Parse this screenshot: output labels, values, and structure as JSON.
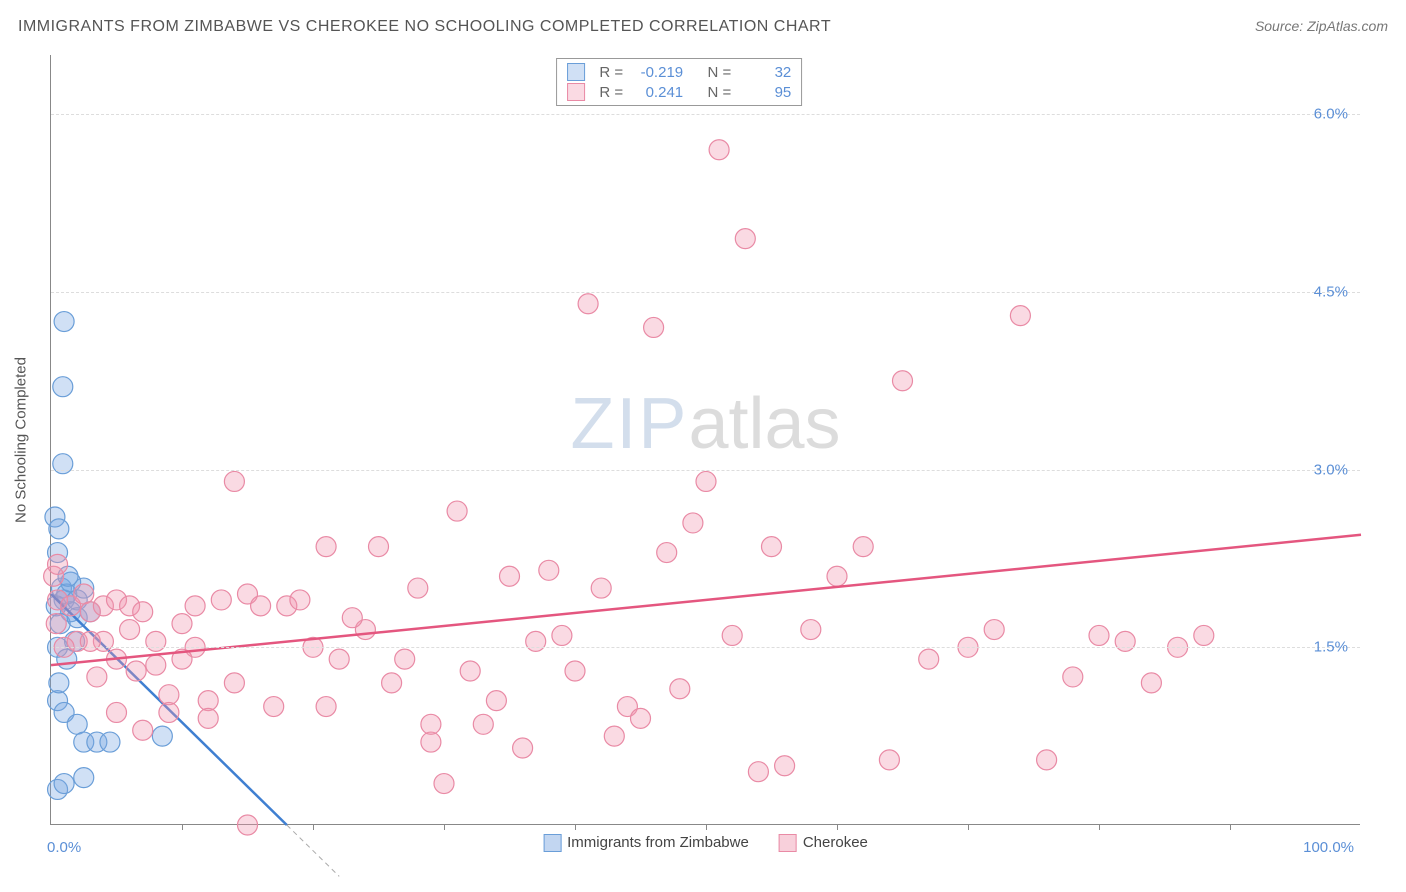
{
  "chart": {
    "type": "scatter",
    "title": "IMMIGRANTS FROM ZIMBABWE VS CHEROKEE NO SCHOOLING COMPLETED CORRELATION CHART",
    "source": "Source: ZipAtlas.com",
    "ylabel": "No Schooling Completed",
    "title_fontsize": 16,
    "label_fontsize": 15,
    "background_color": "#ffffff",
    "grid_color": "#dddddd",
    "axis_color": "#888888",
    "tick_label_color": "#5b8fd6",
    "xaxis": {
      "min_label": "0.0%",
      "max_label": "100.0%",
      "xlim": [
        0,
        100
      ],
      "tick_interval_pct": 10
    },
    "yaxis": {
      "ylim": [
        0,
        6.5
      ],
      "ticks": [
        1.5,
        3.0,
        4.5,
        6.0
      ],
      "tick_labels": [
        "1.5%",
        "3.0%",
        "4.5%",
        "6.0%"
      ]
    },
    "watermark": {
      "text_a": "ZIP",
      "text_b": "atlas",
      "color_a": "rgba(130,160,200,0.35)",
      "color_b": "rgba(140,140,140,0.3)",
      "fontsize": 72
    },
    "marker_radius": 10,
    "marker_stroke_width": 1.2,
    "trendline_width": 2.5,
    "series": [
      {
        "name": "Immigrants from Zimbabwe",
        "fill": "rgba(120,165,225,0.35)",
        "stroke": "#6a9ed8",
        "solid": "#3f7fd1",
        "R_label": "R =",
        "R": "-0.219",
        "N_label": "N =",
        "N": "32",
        "trend": {
          "x1": 0,
          "y1": 1.95,
          "x2": 18,
          "y2": 0.0,
          "dash_extend_x": 22
        },
        "points": [
          [
            0.3,
            2.6
          ],
          [
            0.5,
            2.3
          ],
          [
            0.8,
            2.0
          ],
          [
            0.6,
            2.5
          ],
          [
            1.0,
            1.9
          ],
          [
            0.4,
            1.85
          ],
          [
            1.2,
            1.95
          ],
          [
            1.5,
            1.8
          ],
          [
            1.0,
            4.25
          ],
          [
            0.9,
            3.7
          ],
          [
            0.9,
            3.05
          ],
          [
            2.0,
            1.9
          ],
          [
            2.5,
            2.0
          ],
          [
            1.8,
            1.55
          ],
          [
            0.5,
            1.5
          ],
          [
            1.2,
            1.4
          ],
          [
            0.5,
            1.05
          ],
          [
            1.0,
            0.95
          ],
          [
            2.0,
            0.85
          ],
          [
            2.5,
            0.7
          ],
          [
            3.5,
            0.7
          ],
          [
            0.5,
            0.3
          ],
          [
            1.0,
            0.35
          ],
          [
            2.5,
            0.4
          ],
          [
            4.5,
            0.7
          ],
          [
            8.5,
            0.75
          ],
          [
            0.7,
            1.7
          ],
          [
            1.5,
            2.05
          ],
          [
            2.0,
            1.75
          ],
          [
            3.0,
            1.8
          ],
          [
            1.3,
            2.1
          ],
          [
            0.6,
            1.2
          ]
        ]
      },
      {
        "name": "Cherokee",
        "fill": "rgba(240,150,175,0.35)",
        "stroke": "#e98aa5",
        "solid": "#e4567f",
        "R_label": "R =",
        "R": "0.241",
        "N_label": "N =",
        "N": "95",
        "trend": {
          "x1": 0,
          "y1": 1.35,
          "x2": 100,
          "y2": 2.45
        },
        "points": [
          [
            0.5,
            1.9
          ],
          [
            1.5,
            1.85
          ],
          [
            2.5,
            1.95
          ],
          [
            3.0,
            1.8
          ],
          [
            4.0,
            1.85
          ],
          [
            5.0,
            1.9
          ],
          [
            6.0,
            1.85
          ],
          [
            7.0,
            1.8
          ],
          [
            3.5,
            1.25
          ],
          [
            5.0,
            1.4
          ],
          [
            6.5,
            1.3
          ],
          [
            8.0,
            1.35
          ],
          [
            9.0,
            1.1
          ],
          [
            10,
            1.7
          ],
          [
            11,
            1.5
          ],
          [
            12,
            1.05
          ],
          [
            5.0,
            0.95
          ],
          [
            7.0,
            0.8
          ],
          [
            12,
            0.9
          ],
          [
            14,
            1.2
          ],
          [
            15,
            1.95
          ],
          [
            14,
            2.9
          ],
          [
            17,
            1.0
          ],
          [
            18,
            1.85
          ],
          [
            20,
            1.5
          ],
          [
            21,
            1.0
          ],
          [
            21,
            2.35
          ],
          [
            22,
            1.4
          ],
          [
            24,
            1.65
          ],
          [
            25,
            2.35
          ],
          [
            26,
            1.2
          ],
          [
            27,
            1.4
          ],
          [
            28,
            2.0
          ],
          [
            29,
            0.7
          ],
          [
            29,
            0.85
          ],
          [
            30,
            0.35
          ],
          [
            31,
            2.65
          ],
          [
            32,
            1.3
          ],
          [
            33,
            0.85
          ],
          [
            34,
            1.05
          ],
          [
            35,
            2.1
          ],
          [
            36,
            0.65
          ],
          [
            37,
            1.55
          ],
          [
            38,
            2.15
          ],
          [
            40,
            1.3
          ],
          [
            41,
            4.4
          ],
          [
            42,
            2.0
          ],
          [
            44,
            1.0
          ],
          [
            45,
            0.9
          ],
          [
            46,
            4.2
          ],
          [
            47,
            2.3
          ],
          [
            48,
            1.15
          ],
          [
            50,
            2.9
          ],
          [
            51,
            5.7
          ],
          [
            52,
            1.6
          ],
          [
            53,
            4.95
          ],
          [
            54,
            0.45
          ],
          [
            55,
            2.35
          ],
          [
            56,
            0.5
          ],
          [
            58,
            1.65
          ],
          [
            60,
            2.1
          ],
          [
            62,
            2.35
          ],
          [
            64,
            0.55
          ],
          [
            65,
            3.75
          ],
          [
            67,
            1.4
          ],
          [
            70,
            1.5
          ],
          [
            72,
            1.65
          ],
          [
            74,
            4.3
          ],
          [
            76,
            0.55
          ],
          [
            78,
            1.25
          ],
          [
            80,
            1.6
          ],
          [
            82,
            1.55
          ],
          [
            84,
            1.2
          ],
          [
            86,
            1.5
          ],
          [
            88,
            1.6
          ],
          [
            8,
            1.55
          ],
          [
            10,
            1.4
          ],
          [
            6,
            1.65
          ],
          [
            4,
            1.55
          ],
          [
            15,
            0.0
          ],
          [
            16,
            1.85
          ],
          [
            19,
            1.9
          ],
          [
            23,
            1.75
          ],
          [
            13,
            1.9
          ],
          [
            39,
            1.6
          ],
          [
            43,
            0.75
          ],
          [
            2,
            1.55
          ],
          [
            49,
            2.55
          ],
          [
            9,
            0.95
          ],
          [
            11,
            1.85
          ],
          [
            0.2,
            2.1
          ],
          [
            0.4,
            1.7
          ],
          [
            0.5,
            2.2
          ],
          [
            1,
            1.5
          ],
          [
            3,
            1.55
          ]
        ]
      }
    ],
    "bottom_legend": [
      {
        "label": "Immigrants from Zimbabwe",
        "fill": "rgba(120,165,225,0.45)",
        "border": "#6a9ed8"
      },
      {
        "label": "Cherokee",
        "fill": "rgba(240,150,175,0.45)",
        "border": "#e98aa5"
      }
    ]
  }
}
